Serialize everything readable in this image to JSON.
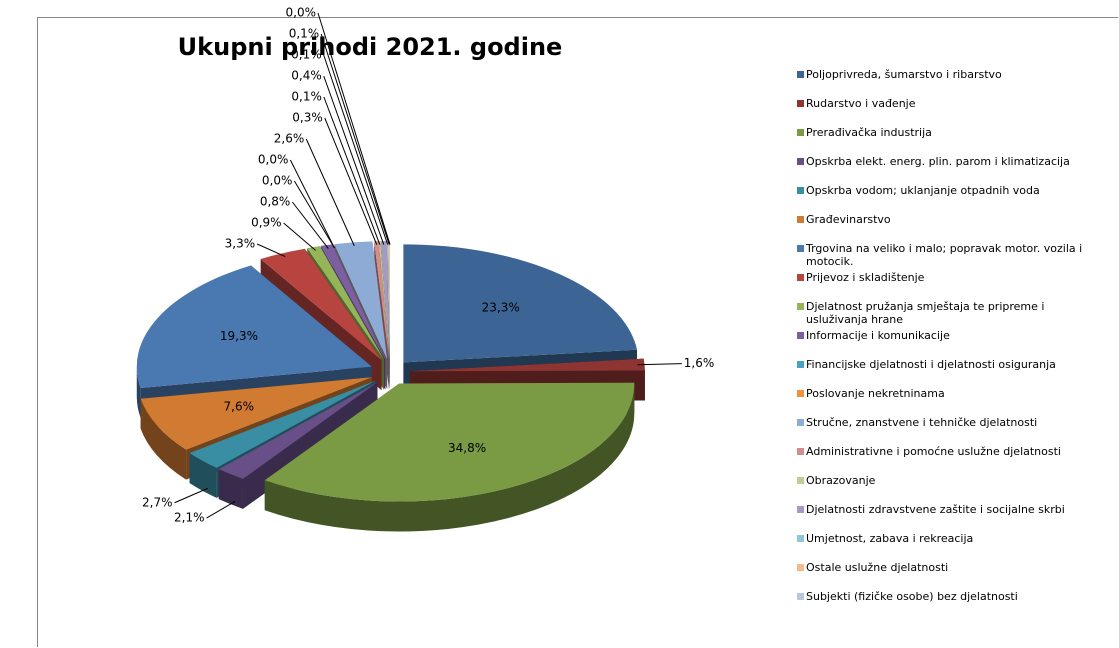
{
  "chart_data": {
    "type": "pie",
    "title": "Ukupni prihodi 2021. godine",
    "categories": [
      "Poljoprivreda, šumarstvo i ribarstvo",
      "Rudarstvo i vađenje",
      "Prerađivačka industrija",
      "Opskrba elekt. energ. plin. parom i klimatizacija",
      "Opskrba vodom; uklanjanje otpadnih voda",
      "Građevinarstvo",
      "Trgovina na veliko i malo; popravak motor. vozila i motocik.",
      "Prijevoz i skladištenje",
      "Djelatnost pružanja smještaja te pripreme i usluživanja hrane",
      "Informacije i komunikacije",
      "Financijske djelatnosti i djelatnosti osiguranja",
      "Poslovanje nekretninama",
      "Stručne, znanstvene i tehničke djelatnosti",
      "Administrativne i pomoćne uslužne djelatnosti",
      "Obrazovanje",
      "Djelatnosti zdravstvene zaštite i socijalne skrbi",
      "Umjetnost, zabava i rekreacija",
      "Ostale uslužne djelatnosti",
      "Subjekti (fizičke osobe) bez djelatnosti"
    ],
    "values": [
      23.3,
      1.6,
      34.8,
      2.1,
      2.7,
      7.6,
      19.3,
      3.3,
      0.9,
      0.8,
      0.0,
      0.0,
      2.6,
      0.3,
      0.1,
      0.4,
      0.1,
      0.1,
      0.0
    ],
    "value_labels": [
      "23,3%",
      "1,6%",
      "34,8%",
      "2,1%",
      "2,7%",
      "7,6%",
      "19,3%",
      "3,3%",
      "0,9%",
      "0,8%",
      "0,0%",
      "0,0%",
      "2,6%",
      "0,3%",
      "0,1%",
      "0,4%",
      "0,1%",
      "0,1%",
      "0,0%"
    ],
    "colors": [
      "#3c6595",
      "#8e3533",
      "#7a9a43",
      "#684f88",
      "#3a8ea4",
      "#d17a32",
      "#4a78b0",
      "#b84440",
      "#94b658",
      "#7b5fa0",
      "#45a5c0",
      "#f2903e",
      "#8dabd4",
      "#d48d8b",
      "#bcd190",
      "#a998c2",
      "#8cc6d8",
      "#f7b987",
      "#b5c9e3"
    ],
    "legend": "right"
  }
}
